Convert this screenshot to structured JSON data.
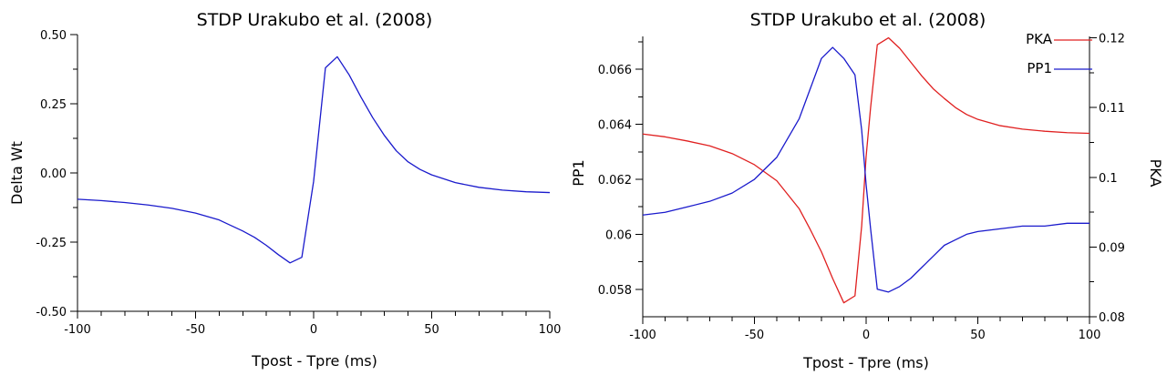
{
  "chart_data": [
    {
      "type": "line",
      "title": "STDP Urakubo et al. (2008)",
      "xlabel": "Tpost - Tpre (ms)",
      "ylabel": "Delta Wt",
      "xlim": [
        -100,
        100
      ],
      "ylim": [
        -0.5,
        0.5
      ],
      "xticks": [
        -100,
        -50,
        0,
        50,
        100
      ],
      "xtick_labels": [
        "-100",
        "-50",
        "0",
        "50",
        "100"
      ],
      "yticks": [
        -0.5,
        -0.25,
        0.0,
        0.25,
        0.5
      ],
      "ytick_labels": [
        "-0.50",
        "-0.25",
        "0.00",
        "0.25",
        "0.50"
      ],
      "grid": false,
      "series": [
        {
          "color": "#1a1acc",
          "x": [
            -100,
            -90,
            -80,
            -70,
            -60,
            -50,
            -40,
            -30,
            -25,
            -20,
            -15,
            -10,
            -5,
            0,
            5,
            10,
            15,
            20,
            25,
            30,
            35,
            40,
            45,
            50,
            60,
            70,
            80,
            90,
            100
          ],
          "y": [
            -0.095,
            -0.1,
            -0.107,
            -0.116,
            -0.128,
            -0.145,
            -0.17,
            -0.21,
            -0.233,
            -0.262,
            -0.295,
            -0.325,
            -0.305,
            -0.03,
            0.38,
            0.42,
            0.355,
            0.275,
            0.2,
            0.135,
            0.08,
            0.04,
            0.013,
            -0.007,
            -0.035,
            -0.052,
            -0.062,
            -0.068,
            -0.071
          ]
        }
      ]
    },
    {
      "type": "line",
      "title": "STDP Urakubo et al. (2008)",
      "xlabel": "Tpost - Tpre (ms)",
      "ylabel": "PP1",
      "ylabel_right": "PKA",
      "xlim": [
        -100,
        100
      ],
      "ylim": [
        0.057,
        0.0672
      ],
      "ylim_right": [
        0.08,
        0.1202
      ],
      "xticks": [
        -100,
        -50,
        0,
        50,
        100
      ],
      "xtick_labels": [
        "-100",
        "-50",
        "0",
        "50",
        "100"
      ],
      "yticks": [
        0.058,
        0.06,
        0.062,
        0.064,
        0.066
      ],
      "ytick_labels": [
        "0.058",
        "0.06",
        "0.062",
        "0.064",
        "0.066"
      ],
      "yticks_right": [
        0.08,
        0.09,
        0.1,
        0.11,
        0.12
      ],
      "ytick_labels_right": [
        "0.08",
        "0.09",
        "0.1",
        "0.11",
        "0.12"
      ],
      "grid": false,
      "legend_position": "top-right",
      "series": [
        {
          "name": "PKA",
          "axis": "right",
          "color": "#e02020",
          "x": [
            -100,
            -90,
            -80,
            -70,
            -60,
            -50,
            -40,
            -30,
            -25,
            -20,
            -15,
            -10,
            -5,
            -2,
            0,
            2,
            5,
            10,
            15,
            20,
            25,
            30,
            35,
            40,
            45,
            50,
            60,
            70,
            80,
            90,
            100
          ],
          "y": [
            0.1062,
            0.1058,
            0.1052,
            0.1045,
            0.1034,
            0.1018,
            0.0995,
            0.0955,
            0.0925,
            0.0893,
            0.0855,
            0.082,
            0.083,
            0.093,
            0.103,
            0.11,
            0.119,
            0.12,
            0.1185,
            0.1165,
            0.1145,
            0.1127,
            0.1113,
            0.11,
            0.109,
            0.1083,
            0.1074,
            0.1069,
            0.1066,
            0.1064,
            0.1063
          ]
        },
        {
          "name": "PP1",
          "axis": "left",
          "color": "#1a1acc",
          "x": [
            -100,
            -90,
            -80,
            -70,
            -60,
            -50,
            -40,
            -30,
            -25,
            -20,
            -15,
            -10,
            -5,
            -2,
            0,
            2,
            5,
            10,
            15,
            20,
            25,
            30,
            35,
            40,
            45,
            50,
            60,
            70,
            80,
            90,
            100
          ],
          "y": [
            0.0607,
            0.0608,
            0.061,
            0.0612,
            0.0615,
            0.062,
            0.0628,
            0.0642,
            0.0653,
            0.0664,
            0.0668,
            0.0664,
            0.0658,
            0.0638,
            0.0618,
            0.0602,
            0.058,
            0.0579,
            0.0581,
            0.0584,
            0.0588,
            0.0592,
            0.0596,
            0.0598,
            0.06,
            0.0601,
            0.0602,
            0.0603,
            0.0603,
            0.0604,
            0.0604
          ]
        }
      ]
    }
  ]
}
